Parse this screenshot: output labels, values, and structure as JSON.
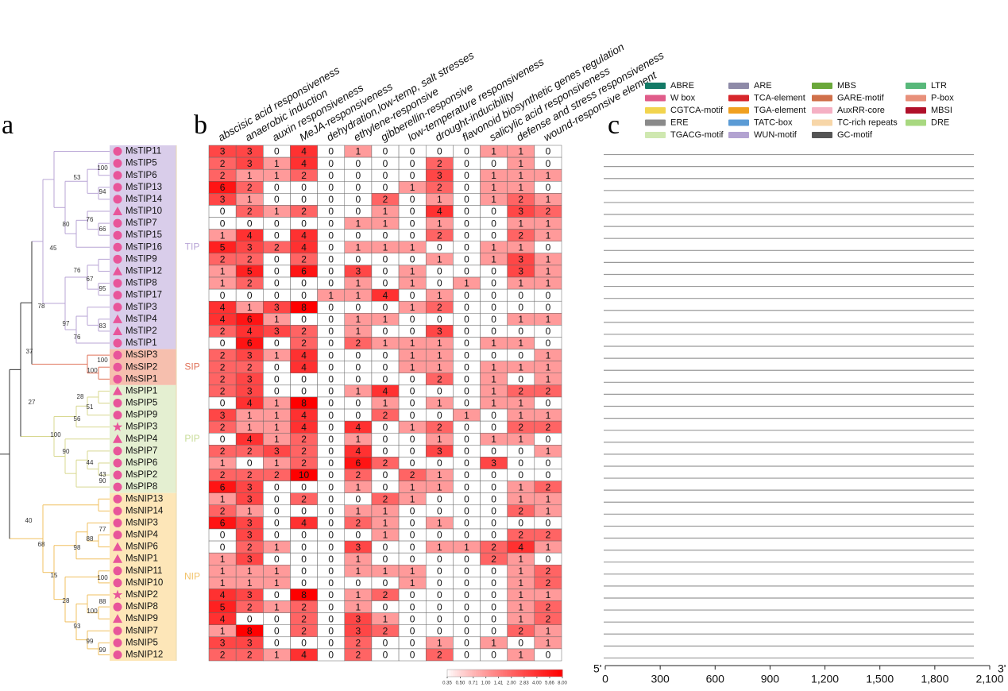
{
  "panel_labels": [
    "a",
    "b",
    "c"
  ],
  "tree": {
    "groups": [
      {
        "name": "TIP",
        "color": "#d9cdea",
        "label_color": "#b9a6d6",
        "line_color": "#b9a6d6",
        "genes": [
          "MsTIP11",
          "MsTIP5",
          "MsTIP6",
          "MsTIP13",
          "MsTIP14",
          "MsTIP10",
          "MsTIP7",
          "MsTIP15",
          "MsTIP16",
          "MsTIP9",
          "MsTIP12",
          "MsTIP8",
          "MsTIP17",
          "MsTIP3",
          "MsTIP4",
          "MsTIP2",
          "MsTIP1"
        ],
        "markers": [
          "circle",
          "circle",
          "circle",
          "circle",
          "circle",
          "triangle",
          "circle",
          "circle",
          "circle",
          "circle",
          "triangle",
          "circle",
          "circle",
          "circle",
          "triangle",
          "triangle",
          "circle"
        ]
      },
      {
        "name": "SIP",
        "color": "#f6bfae",
        "label_color": "#e0735a",
        "line_color": "#e0735a",
        "genes": [
          "MsSIP3",
          "MsSIP2",
          "MsSIP1"
        ],
        "markers": [
          "circle",
          "circle",
          "circle"
        ]
      },
      {
        "name": "PIP",
        "color": "#e4efd1",
        "label_color": "#c8dc98",
        "line_color": "#d8d890",
        "genes": [
          "MsPIP1",
          "MsPIP5",
          "MsPIP9",
          "MsPIP3",
          "MsPIP4",
          "MsPIP7",
          "MsPIP6",
          "MsPIP2",
          "MsPIP8"
        ],
        "markers": [
          "triangle",
          "circle",
          "circle",
          "star",
          "triangle",
          "circle",
          "circle",
          "circle",
          "circle"
        ]
      },
      {
        "name": "NIP",
        "color": "#fde6b8",
        "label_color": "#f2c36a",
        "line_color": "#f0c060",
        "genes": [
          "MsNIP13",
          "MsNIP14",
          "MsNIP3",
          "MsNIP4",
          "MsNIP6",
          "MsNIP1",
          "MsNIP11",
          "MsNIP10",
          "MsNIP2",
          "MsNIP8",
          "MsNIP9",
          "MsNIP7",
          "MsNIP5",
          "MsNIP12"
        ],
        "markers": [
          "circle",
          "circle",
          "circle",
          "circle",
          "triangle",
          "triangle",
          "circle",
          "circle",
          "star",
          "circle",
          "triangle",
          "circle",
          "circle",
          "circle"
        ]
      }
    ],
    "marker_color": "#e8559a",
    "bootstrap": [
      100,
      53,
      94,
      80,
      76,
      66,
      45,
      76,
      67,
      95,
      78,
      97,
      83,
      76,
      37,
      100,
      100,
      27,
      28,
      51,
      56,
      100,
      90,
      44,
      43,
      90,
      40,
      77,
      88,
      68,
      98,
      15,
      100,
      28,
      88,
      100,
      93,
      99,
      99
    ]
  },
  "chart_data": {
    "type": "heatmap",
    "columns": [
      "abscisic acid responsiveness",
      "anaerobic induction",
      "auxin responsiveness",
      "MeJA-responsiveness",
      "dehydration,low-temp, salt stresses",
      "ethylene-responsive",
      "gibberellin-responsive",
      "low-temperature responsiveness",
      "drought-inducibility",
      "flavonoid biosynthetic genes regulation",
      "salicylic acid responsiveness",
      "defense and stress responsiveness",
      "wound-responsive element"
    ],
    "values": [
      [
        3,
        3,
        0,
        4,
        0,
        1,
        0,
        0,
        0,
        0,
        1,
        1,
        0
      ],
      [
        2,
        3,
        1,
        4,
        0,
        0,
        0,
        0,
        2,
        0,
        0,
        1,
        0
      ],
      [
        2,
        1,
        1,
        2,
        0,
        0,
        0,
        0,
        3,
        0,
        1,
        1,
        1
      ],
      [
        6,
        2,
        0,
        0,
        0,
        0,
        0,
        1,
        2,
        0,
        1,
        1,
        0
      ],
      [
        3,
        1,
        0,
        0,
        0,
        0,
        2,
        0,
        1,
        0,
        1,
        2,
        1
      ],
      [
        0,
        2,
        1,
        2,
        0,
        0,
        1,
        0,
        4,
        0,
        0,
        3,
        2
      ],
      [
        0,
        0,
        0,
        0,
        0,
        1,
        1,
        0,
        1,
        0,
        0,
        1,
        1
      ],
      [
        1,
        4,
        0,
        4,
        0,
        0,
        0,
        0,
        2,
        0,
        0,
        2,
        1
      ],
      [
        5,
        3,
        2,
        4,
        0,
        1,
        1,
        1,
        0,
        0,
        1,
        1,
        0
      ],
      [
        2,
        2,
        0,
        2,
        0,
        0,
        0,
        0,
        1,
        0,
        1,
        3,
        1
      ],
      [
        1,
        5,
        0,
        6,
        0,
        3,
        0,
        1,
        0,
        0,
        0,
        3,
        1
      ],
      [
        1,
        2,
        0,
        0,
        0,
        1,
        0,
        1,
        0,
        1,
        0,
        1,
        1
      ],
      [
        0,
        0,
        0,
        0,
        1,
        1,
        4,
        0,
        1,
        0,
        0,
        0,
        0
      ],
      [
        4,
        1,
        3,
        8,
        0,
        0,
        0,
        1,
        2,
        0,
        0,
        0,
        0
      ],
      [
        4,
        6,
        1,
        0,
        0,
        1,
        1,
        0,
        0,
        0,
        0,
        1,
        1
      ],
      [
        2,
        4,
        3,
        2,
        0,
        1,
        0,
        0,
        3,
        0,
        0,
        0,
        0
      ],
      [
        0,
        6,
        0,
        2,
        0,
        2,
        1,
        1,
        1,
        0,
        1,
        1,
        0
      ],
      [
        2,
        3,
        1,
        4,
        0,
        0,
        0,
        1,
        1,
        0,
        0,
        0,
        1
      ],
      [
        2,
        2,
        0,
        4,
        0,
        0,
        0,
        1,
        1,
        0,
        1,
        1,
        1
      ],
      [
        2,
        3,
        0,
        0,
        0,
        0,
        0,
        0,
        2,
        0,
        1,
        0,
        1
      ],
      [
        2,
        3,
        0,
        0,
        0,
        1,
        4,
        0,
        0,
        0,
        1,
        2,
        2
      ],
      [
        0,
        4,
        1,
        8,
        0,
        0,
        1,
        0,
        1,
        0,
        1,
        1,
        0
      ],
      [
        3,
        1,
        1,
        4,
        0,
        0,
        2,
        0,
        0,
        1,
        0,
        1,
        1
      ],
      [
        2,
        1,
        1,
        4,
        0,
        4,
        0,
        1,
        2,
        0,
        0,
        2,
        2
      ],
      [
        0,
        4,
        1,
        2,
        0,
        1,
        0,
        0,
        1,
        0,
        1,
        1,
        0
      ],
      [
        2,
        2,
        3,
        2,
        0,
        4,
        0,
        0,
        3,
        0,
        0,
        0,
        1
      ],
      [
        1,
        0,
        1,
        2,
        0,
        6,
        2,
        0,
        0,
        0,
        3,
        0,
        0
      ],
      [
        2,
        2,
        2,
        10,
        0,
        2,
        0,
        2,
        1,
        0,
        0,
        0,
        0
      ],
      [
        6,
        3,
        0,
        0,
        0,
        1,
        0,
        1,
        1,
        0,
        0,
        1,
        2
      ],
      [
        1,
        3,
        0,
        2,
        0,
        0,
        2,
        1,
        0,
        0,
        0,
        1,
        1
      ],
      [
        2,
        1,
        0,
        0,
        0,
        1,
        1,
        0,
        0,
        0,
        0,
        2,
        1
      ],
      [
        6,
        3,
        0,
        4,
        0,
        2,
        1,
        0,
        1,
        0,
        0,
        0,
        0
      ],
      [
        0,
        3,
        0,
        0,
        0,
        0,
        1,
        0,
        0,
        0,
        0,
        2,
        2
      ],
      [
        0,
        2,
        1,
        0,
        0,
        3,
        0,
        0,
        1,
        1,
        2,
        4,
        1
      ],
      [
        1,
        3,
        0,
        0,
        0,
        1,
        0,
        0,
        0,
        0,
        2,
        1,
        0
      ],
      [
        1,
        1,
        1,
        0,
        0,
        1,
        1,
        1,
        0,
        0,
        0,
        1,
        2
      ],
      [
        1,
        1,
        1,
        0,
        0,
        0,
        0,
        1,
        0,
        0,
        0,
        1,
        2
      ],
      [
        4,
        3,
        0,
        8,
        0,
        1,
        2,
        0,
        0,
        0,
        0,
        1,
        1
      ],
      [
        5,
        2,
        1,
        2,
        0,
        1,
        0,
        0,
        0,
        0,
        0,
        1,
        2
      ],
      [
        4,
        0,
        0,
        2,
        0,
        3,
        1,
        0,
        0,
        0,
        0,
        1,
        2
      ],
      [
        1,
        8,
        0,
        2,
        0,
        3,
        2,
        0,
        0,
        0,
        0,
        2,
        1
      ],
      [
        3,
        3,
        0,
        0,
        0,
        2,
        0,
        0,
        1,
        0,
        1,
        0,
        1
      ],
      [
        2,
        2,
        1,
        4,
        0,
        2,
        0,
        0,
        2,
        0,
        0,
        1,
        0
      ]
    ],
    "color_scale": "log",
    "color_low": "#ffffff",
    "color_high": "#ff0000",
    "colorbar_ticks": [
      0.35,
      {
        "value": 0.5,
        "label": "0.50"
      },
      0.71,
      {
        "value": 1,
        "label": "1.00"
      },
      1.41,
      {
        "value": 2,
        "label": "2.00"
      },
      2.83,
      {
        "value": 4,
        "label": "4.00"
      },
      5.66,
      {
        "value": 8,
        "label": "8.00"
      }
    ]
  },
  "promoter": {
    "xlim": [
      0,
      2100
    ],
    "xticks": [
      0,
      300,
      600,
      900,
      {
        "value": 1200,
        "label": "1,200"
      },
      {
        "value": 1500,
        "label": "1,500"
      },
      {
        "value": 1800,
        "label": "1,800"
      },
      {
        "value": 2100,
        "label": "2,100"
      }
    ],
    "end_labels": [
      "5'",
      "3'"
    ],
    "elements": [
      {
        "name": "ABRE",
        "color": "#137a66"
      },
      {
        "name": "W box",
        "color": "#e05c8a"
      },
      {
        "name": "CGTCA-motif",
        "color": "#f2d44e"
      },
      {
        "name": "ERE",
        "color": "#8a8a8a"
      },
      {
        "name": "TGACG-motif",
        "color": "#cfe8b0"
      },
      {
        "name": "ARE",
        "color": "#8e8aa8"
      },
      {
        "name": "TCA-element",
        "color": "#d7262b"
      },
      {
        "name": "TGA-element",
        "color": "#f0a020"
      },
      {
        "name": "TATC-box",
        "color": "#5b9bd5"
      },
      {
        "name": "WUN-motif",
        "color": "#b3a3d1"
      },
      {
        "name": "MBS",
        "color": "#6aa83a"
      },
      {
        "name": "GARE-motif",
        "color": "#d0704a"
      },
      {
        "name": "AuxRR-core",
        "color": "#f5b0c4"
      },
      {
        "name": "TC-rich repeats",
        "color": "#f7d6a8"
      },
      {
        "name": "GC-motif",
        "color": "#555555"
      },
      {
        "name": "LTR",
        "color": "#58b87a"
      },
      {
        "name": "P-box",
        "color": "#e8907a"
      },
      {
        "name": "MBSI",
        "color": "#b0102a"
      },
      {
        "name": "DRE",
        "color": "#a8d880"
      }
    ]
  }
}
